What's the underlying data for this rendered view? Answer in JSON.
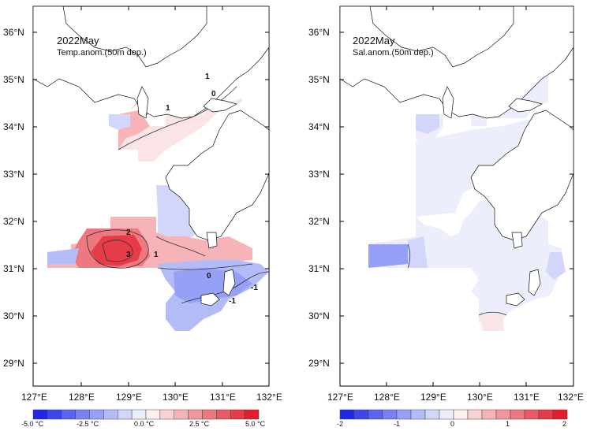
{
  "panels": {
    "left": {
      "title": "2022May",
      "subtitle": "Temp.anom.(50m dep.)",
      "contour_labels": [
        "1",
        "0",
        "1",
        "2",
        "3",
        "1",
        "0",
        "-1",
        "-1"
      ],
      "colorbar_labels": [
        "-5.0 °C",
        "-2.5 °C",
        "0.0 °C",
        "2.5 °C",
        "5.0 °C"
      ]
    },
    "right": {
      "title": "2022May",
      "subtitle": "Sal.anom.(50m dep.)",
      "colorbar_labels": [
        "-2",
        "-1",
        "0",
        "1",
        "2"
      ]
    }
  },
  "axes": {
    "lat_labels": [
      "36°N",
      "35°N",
      "34°N",
      "33°N",
      "32°N",
      "31°N",
      "30°N",
      "29°N"
    ],
    "lon_labels": [
      "127°E",
      "128°E",
      "129°E",
      "130°E",
      "131°E",
      "132°E"
    ]
  },
  "colors": {
    "temp_scale": [
      "#1e28e6",
      "#3c46ea",
      "#5a64ee",
      "#7882f2",
      "#96a0f6",
      "#b4bcf8",
      "#d2d6fa",
      "#eceefc",
      "#fff0f0",
      "#fad2d4",
      "#f6b4b8",
      "#f2969c",
      "#ee7880",
      "#ea5a64",
      "#e63c48",
      "#e21e2c"
    ],
    "sal_scale": [
      "#1e28e6",
      "#3c46ea",
      "#5a64ee",
      "#7882f2",
      "#96a0f6",
      "#b4bcf8",
      "#d2d6fa",
      "#eceefc",
      "#fff0f0",
      "#fad2d4",
      "#f6b4b8",
      "#f2969c",
      "#ee7880",
      "#ea5a64",
      "#e63c48",
      "#e21e2c"
    ]
  }
}
